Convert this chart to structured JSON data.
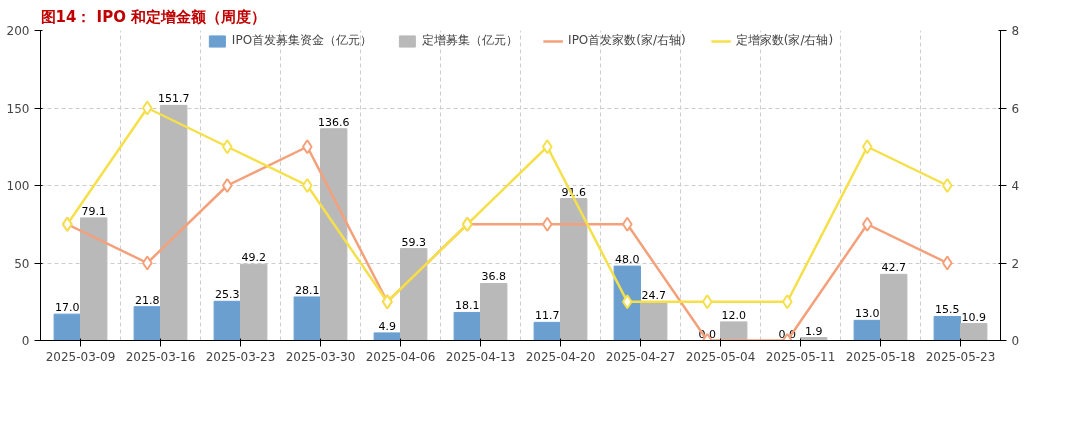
{
  "chart_data": {
    "type": "bar",
    "title": "图14： IPO 和定增金额（周度）",
    "categories": [
      "2025-03-09",
      "2025-03-16",
      "2025-03-23",
      "2025-03-30",
      "2025-04-06",
      "2025-04-13",
      "2025-04-20",
      "2025-04-27",
      "2025-05-04",
      "2025-05-11",
      "2025-05-18",
      "2025-05-23"
    ],
    "series": [
      {
        "name": "IPO首发募集资金（亿元）",
        "color": "#6a9fd0",
        "values": [
          17.0,
          21.8,
          25.3,
          28.1,
          4.9,
          18.1,
          11.7,
          48.0,
          0.0,
          0.0,
          13.0,
          15.5
        ],
        "value_labels": [
          "17.0",
          "21.8",
          "25.3",
          "28.1",
          "4.9",
          "18.1",
          "11.7",
          "48.0",
          "0.0",
          "0.0",
          "13.0",
          "15.5"
        ]
      },
      {
        "name": "定增募集（亿元）",
        "color": "#b9b9b9",
        "values": [
          79.1,
          151.7,
          49.2,
          136.6,
          59.3,
          36.8,
          91.6,
          24.7,
          12.0,
          1.9,
          42.7,
          10.9
        ],
        "value_labels": [
          "79.1",
          "151.7",
          "49.2",
          "136.6",
          "59.3",
          "36.8",
          "91.6",
          "24.7",
          "12.0",
          "1.9",
          "42.7",
          "10.9"
        ]
      },
      {
        "name": "IPO首发家数(家/右轴)",
        "type": "line",
        "axis": "y2",
        "color": "#f4a07a",
        "values": [
          3,
          2,
          4,
          5,
          1,
          3,
          3,
          3,
          0,
          0,
          3,
          2
        ]
      },
      {
        "name": "定增家数(家/右轴)",
        "type": "line",
        "axis": "y2",
        "color": "#f5e04a",
        "values": [
          3,
          6,
          5,
          4,
          1,
          3,
          5,
          1,
          1,
          1,
          5,
          4
        ]
      }
    ],
    "ylim": [
      0,
      200
    ],
    "yticks": [
      0,
      50,
      100,
      150,
      200
    ],
    "y2lim": [
      0,
      8
    ],
    "y2ticks": [
      0,
      2,
      4,
      6,
      8
    ],
    "grid": true,
    "legend": "top",
    "marker": "diamond"
  }
}
